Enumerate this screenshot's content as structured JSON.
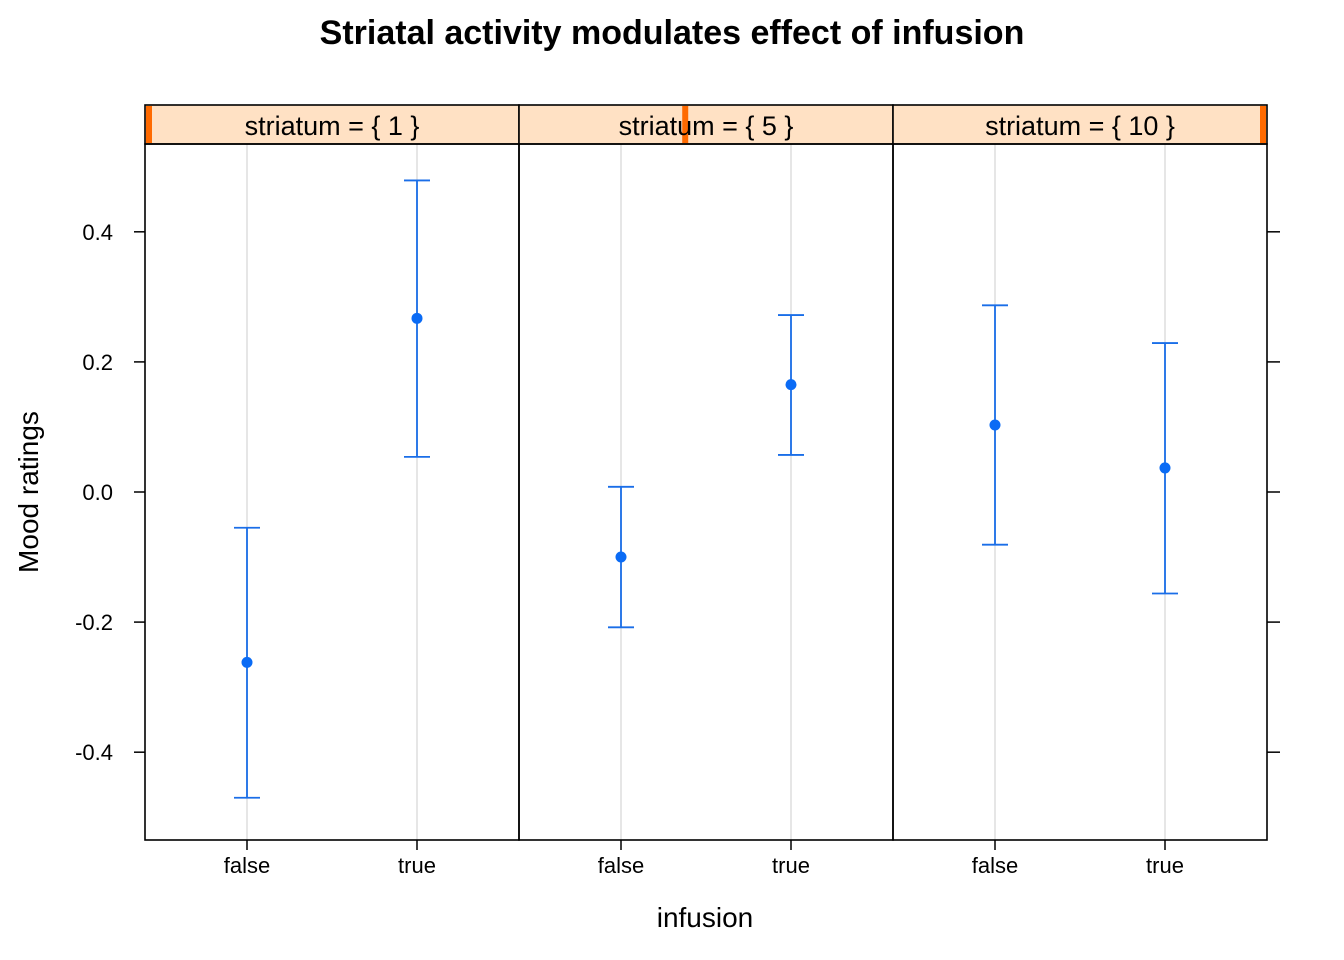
{
  "chart_data": {
    "type": "scatter",
    "title": "Striatal activity modulates effect of infusion",
    "xlabel": "infusion",
    "ylabel": "Mood ratings",
    "ylim": [
      -0.535,
      0.535
    ],
    "yticks": [
      -0.4,
      -0.2,
      0.0,
      0.2,
      0.4
    ],
    "ytick_labels": [
      "-0.4",
      "-0.2",
      "0.0",
      "0.2",
      "0.4"
    ],
    "categories": [
      "false",
      "true"
    ],
    "strip_range": [
      1,
      10
    ],
    "grid": true,
    "panels": [
      {
        "strip_label": "striatum = { 1 }",
        "strip_value": 1,
        "points": [
          {
            "x": "false",
            "y": -0.262,
            "lower": -0.47,
            "upper": -0.055
          },
          {
            "x": "true",
            "y": 0.267,
            "lower": 0.054,
            "upper": 0.479
          }
        ]
      },
      {
        "strip_label": "striatum = { 5 }",
        "strip_value": 5,
        "points": [
          {
            "x": "false",
            "y": -0.1,
            "lower": -0.208,
            "upper": 0.008
          },
          {
            "x": "true",
            "y": 0.165,
            "lower": 0.057,
            "upper": 0.272
          }
        ]
      },
      {
        "strip_label": "striatum = { 10 }",
        "strip_value": 10,
        "points": [
          {
            "x": "false",
            "y": 0.103,
            "lower": -0.081,
            "upper": 0.287
          },
          {
            "x": "true",
            "y": 0.037,
            "lower": -0.156,
            "upper": 0.229
          }
        ]
      }
    ]
  }
}
